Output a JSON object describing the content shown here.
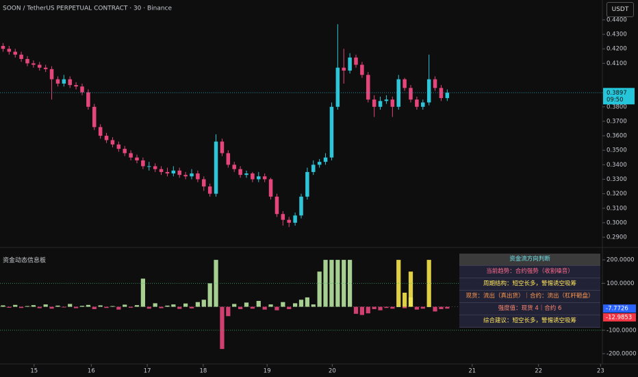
{
  "header": {
    "symbol": "SOON / TetherUS PERPETUAL CONTRACT · 30 · Binance",
    "currency": "USDT"
  },
  "chart_data": [
    {
      "type": "candlestick",
      "up_color": "#2fc4d8",
      "down_color": "#e4467c",
      "x": [
        0,
        1,
        2,
        3,
        4,
        5,
        6,
        7,
        8,
        9,
        10,
        11,
        12,
        13,
        14,
        15,
        16,
        17,
        18,
        19,
        20,
        21,
        22,
        23,
        24,
        25,
        26,
        27,
        28,
        29,
        30,
        31,
        32,
        33,
        34,
        35,
        36,
        37,
        38,
        39,
        40,
        41,
        42,
        43,
        44,
        45,
        46,
        47,
        48,
        49,
        50,
        51,
        52,
        53,
        54,
        55,
        56,
        57,
        58,
        59,
        60,
        61,
        62,
        63,
        64,
        65,
        66,
        67,
        68,
        69,
        70,
        71,
        72,
        73
      ],
      "open": [
        0.422,
        0.42,
        0.418,
        0.416,
        0.413,
        0.41,
        0.409,
        0.407,
        0.406,
        0.399,
        0.396,
        0.399,
        0.395,
        0.394,
        0.39,
        0.38,
        0.366,
        0.36,
        0.357,
        0.354,
        0.351,
        0.348,
        0.345,
        0.343,
        0.339,
        0.339,
        0.337,
        0.335,
        0.334,
        0.336,
        0.333,
        0.332,
        0.334,
        0.33,
        0.325,
        0.32,
        0.356,
        0.348,
        0.34,
        0.337,
        0.333,
        0.334,
        0.33,
        0.332,
        0.33,
        0.318,
        0.306,
        0.302,
        0.3,
        0.305,
        0.318,
        0.335,
        0.34,
        0.342,
        0.345,
        0.38,
        0.407,
        0.405,
        0.414,
        0.409,
        0.402,
        0.385,
        0.38,
        0.384,
        0.385,
        0.38,
        0.399,
        0.393,
        0.385,
        0.38,
        0.383,
        0.399,
        0.393,
        0.386
      ],
      "high": [
        0.424,
        0.422,
        0.42,
        0.418,
        0.415,
        0.412,
        0.411,
        0.409,
        0.408,
        0.401,
        0.402,
        0.401,
        0.397,
        0.396,
        0.392,
        0.382,
        0.368,
        0.362,
        0.359,
        0.356,
        0.353,
        0.35,
        0.347,
        0.345,
        0.342,
        0.341,
        0.339,
        0.338,
        0.339,
        0.338,
        0.335,
        0.337,
        0.336,
        0.332,
        0.327,
        0.361,
        0.358,
        0.35,
        0.342,
        0.339,
        0.336,
        0.335,
        0.335,
        0.334,
        0.331,
        0.32,
        0.308,
        0.304,
        0.307,
        0.32,
        0.338,
        0.343,
        0.344,
        0.348,
        0.383,
        0.437,
        0.42,
        0.417,
        0.416,
        0.411,
        0.404,
        0.388,
        0.387,
        0.388,
        0.387,
        0.402,
        0.4,
        0.395,
        0.387,
        0.385,
        0.416,
        0.401,
        0.395,
        0.392
      ],
      "low": [
        0.418,
        0.416,
        0.414,
        0.411,
        0.408,
        0.407,
        0.405,
        0.404,
        0.385,
        0.394,
        0.394,
        0.393,
        0.392,
        0.388,
        0.378,
        0.364,
        0.358,
        0.355,
        0.352,
        0.349,
        0.346,
        0.343,
        0.341,
        0.337,
        0.336,
        0.335,
        0.333,
        0.332,
        0.332,
        0.331,
        0.33,
        0.33,
        0.328,
        0.322,
        0.318,
        0.318,
        0.346,
        0.338,
        0.335,
        0.331,
        0.331,
        0.328,
        0.328,
        0.328,
        0.316,
        0.304,
        0.298,
        0.297,
        0.298,
        0.303,
        0.316,
        0.333,
        0.338,
        0.34,
        0.343,
        0.378,
        0.396,
        0.403,
        0.407,
        0.4,
        0.383,
        0.373,
        0.378,
        0.382,
        0.373,
        0.378,
        0.391,
        0.383,
        0.378,
        0.378,
        0.381,
        0.391,
        0.384,
        0.384
      ],
      "close": [
        0.42,
        0.418,
        0.416,
        0.413,
        0.41,
        0.409,
        0.407,
        0.406,
        0.399,
        0.396,
        0.399,
        0.395,
        0.394,
        0.39,
        0.38,
        0.366,
        0.36,
        0.357,
        0.354,
        0.351,
        0.348,
        0.345,
        0.343,
        0.339,
        0.339,
        0.337,
        0.335,
        0.334,
        0.336,
        0.333,
        0.332,
        0.334,
        0.33,
        0.325,
        0.32,
        0.356,
        0.348,
        0.34,
        0.337,
        0.333,
        0.334,
        0.33,
        0.332,
        0.33,
        0.318,
        0.306,
        0.302,
        0.3,
        0.305,
        0.318,
        0.335,
        0.34,
        0.342,
        0.345,
        0.38,
        0.407,
        0.405,
        0.414,
        0.409,
        0.402,
        0.385,
        0.38,
        0.384,
        0.385,
        0.38,
        0.399,
        0.393,
        0.385,
        0.38,
        0.383,
        0.399,
        0.393,
        0.386,
        0.3897
      ],
      "xlim": [
        -0.5,
        98.5
      ],
      "xticks": [
        {
          "value": 5.1,
          "label": "15"
        },
        {
          "value": 14.5,
          "label": "16"
        },
        {
          "value": 23.7,
          "label": "17"
        },
        {
          "value": 32.9,
          "label": "18"
        },
        {
          "value": 43.4,
          "label": "19"
        },
        {
          "value": 54.1,
          "label": "20"
        },
        {
          "value": 77.1,
          "label": "21"
        },
        {
          "value": 88.0,
          "label": "22"
        },
        {
          "value": 98.2,
          "label": "23"
        }
      ],
      "ylim": [
        0.2853,
        0.4537
      ],
      "yticks": [
        {
          "value": 0.29,
          "label": "0.2900"
        },
        {
          "value": 0.3,
          "label": "0.3000"
        },
        {
          "value": 0.31,
          "label": "0.3100"
        },
        {
          "value": 0.32,
          "label": "0.3200"
        },
        {
          "value": 0.33,
          "label": "0.3300"
        },
        {
          "value": 0.34,
          "label": "0.3400"
        },
        {
          "value": 0.35,
          "label": "0.3500"
        },
        {
          "value": 0.36,
          "label": "0.3600"
        },
        {
          "value": 0.37,
          "label": "0.3700"
        },
        {
          "value": 0.38,
          "label": "0.3800"
        },
        {
          "value": 0.41,
          "label": "0.4100"
        },
        {
          "value": 0.42,
          "label": "0.4200"
        },
        {
          "value": 0.43,
          "label": "0.4300"
        },
        {
          "value": 0.44,
          "label": "0.4400"
        }
      ],
      "last_price": 0.3897,
      "countdown": "09:50",
      "last_price_color": "#26c6da"
    },
    {
      "type": "bar",
      "title": "资金动态信息板",
      "series": [
        {
          "color": "#b9e4a1",
          "neg_color": "#e4467c",
          "values": [
            6,
            -4,
            8,
            -5,
            3,
            7,
            -6,
            10,
            -8,
            5,
            -3,
            12,
            -6,
            4,
            8,
            -10,
            6,
            -5,
            3,
            -12,
            9,
            -4,
            7,
            120,
            -8,
            15,
            -6,
            5,
            10,
            -9,
            14,
            -7,
            20,
            30,
            100,
            200,
            -180,
            -40,
            12,
            -10,
            18,
            -8,
            25,
            -12,
            10,
            -15,
            20,
            -10,
            15,
            30,
            40,
            10,
            150,
            200,
            200,
            200,
            200,
            200,
            -30,
            -35,
            -28,
            -10,
            -15,
            -5,
            -8,
            0,
            -6,
            40,
            -12,
            -8,
            0,
            -20,
            -10,
            -7.7726
          ]
        },
        {
          "color": "#f5e44a",
          "values": [
            null,
            null,
            null,
            null,
            null,
            null,
            null,
            null,
            null,
            null,
            null,
            null,
            null,
            null,
            null,
            null,
            null,
            null,
            null,
            null,
            null,
            null,
            null,
            null,
            null,
            null,
            null,
            null,
            null,
            null,
            null,
            null,
            null,
            null,
            null,
            null,
            null,
            null,
            null,
            null,
            null,
            null,
            null,
            null,
            null,
            null,
            null,
            null,
            null,
            null,
            null,
            null,
            null,
            null,
            null,
            null,
            null,
            null,
            null,
            null,
            null,
            null,
            null,
            null,
            null,
            200,
            60,
            150,
            null,
            null,
            200,
            null,
            null,
            null
          ]
        }
      ],
      "ylim": [
        -241,
        250
      ],
      "yticks": [
        {
          "value": 200,
          "label": "200.0000"
        },
        {
          "value": 100,
          "label": "100.0000"
        },
        {
          "value": -100,
          "label": "-100.0000"
        },
        {
          "value": -200,
          "label": "-200.0000"
        }
      ],
      "reference_lines": [
        100,
        -100
      ],
      "markers": [
        {
          "value": -7.7726,
          "color": "#2962ff"
        },
        {
          "value": -12.9853,
          "color": "#f23645"
        }
      ]
    }
  ],
  "panel": {
    "title": "资金流方向判断",
    "rows": [
      {
        "text": "当前趋势：合约强势（收割噪音）",
        "color": "#ff6b8a"
      },
      {
        "text": "周期结构：短空长多，警惕诱空吸筹",
        "color": "#ffe55c"
      },
      {
        "text": "现货：流出（真出货）｜合约：流出（杠杆砸盘）",
        "color": "#ff9a50"
      },
      {
        "text": "强度值：现货 4｜合约 6",
        "color": "#ff8a70"
      },
      {
        "text": "综合建议：短空长多，警惕诱空吸筹",
        "color": "#ffe55c"
      }
    ]
  }
}
